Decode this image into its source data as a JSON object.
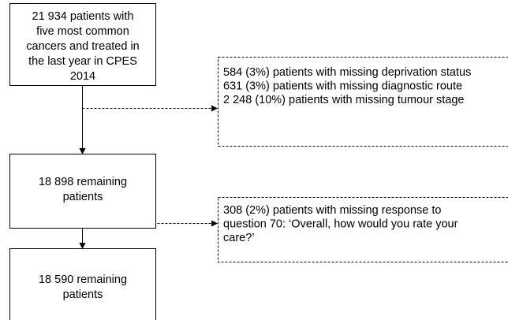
{
  "nodes": [
    {
      "lines": [
        "21 934 patients with",
        "five most common",
        "cancers and treated in",
        "the last year in CPES",
        "2014"
      ]
    },
    {
      "lines": [
        "18 898 remaining",
        "patients"
      ]
    },
    {
      "lines": [
        "18 590 remaining",
        "patients"
      ]
    }
  ],
  "exclusions": [
    {
      "lines": [
        "584 (3%) patients with missing deprivation status",
        "631 (3%) patients with missing diagnostic route",
        "2 248 (10%) patients with missing tumour stage"
      ]
    },
    {
      "lines": [
        "308 (2%) patients with missing response to",
        "question 70: ‘Overall, how would you rate your",
        "care?’"
      ]
    }
  ]
}
